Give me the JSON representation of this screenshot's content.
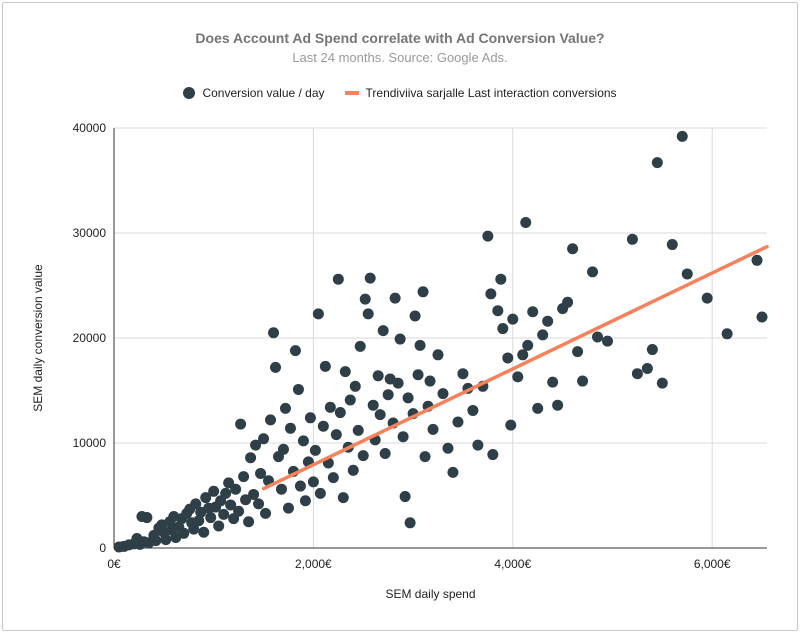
{
  "chart_data": {
    "type": "scatter",
    "title": "Does Account Ad Spend correlate with Ad Conversion Value?",
    "subtitle": "Last 24 months. Source: Google Ads.",
    "xlabel": "SEM daily spend",
    "ylabel": "SEM daily conversion value",
    "xlim": [
      0,
      6550
    ],
    "ylim": [
      0,
      40000
    ],
    "x_ticks": [
      {
        "value": 0,
        "label": "0€"
      },
      {
        "value": 2000,
        "label": "2,000€"
      },
      {
        "value": 4000,
        "label": "4,000€"
      },
      {
        "value": 6000,
        "label": "6,000€"
      }
    ],
    "y_ticks": [
      {
        "value": 0,
        "label": "0"
      },
      {
        "value": 10000,
        "label": "10000"
      },
      {
        "value": 20000,
        "label": "20000"
      },
      {
        "value": 30000,
        "label": "30000"
      },
      {
        "value": 40000,
        "label": "40000"
      }
    ],
    "grid": true,
    "legend_position": "top",
    "series": [
      {
        "name": "Conversion value / day",
        "type": "scatter",
        "color": "#2f3f47",
        "points": [
          [
            50,
            100
          ],
          [
            100,
            150
          ],
          [
            150,
            300
          ],
          [
            200,
            400
          ],
          [
            230,
            900
          ],
          [
            260,
            350
          ],
          [
            300,
            600
          ],
          [
            280,
            3000
          ],
          [
            330,
            2900
          ],
          [
            350,
            500
          ],
          [
            400,
            1200
          ],
          [
            420,
            700
          ],
          [
            450,
            1900
          ],
          [
            480,
            2200
          ],
          [
            500,
            1500
          ],
          [
            520,
            800
          ],
          [
            560,
            2500
          ],
          [
            580,
            1700
          ],
          [
            600,
            3000
          ],
          [
            620,
            1000
          ],
          [
            650,
            2000
          ],
          [
            680,
            2800
          ],
          [
            700,
            1400
          ],
          [
            730,
            3300
          ],
          [
            760,
            3700
          ],
          [
            780,
            2400
          ],
          [
            800,
            1800
          ],
          [
            820,
            4200
          ],
          [
            850,
            2600
          ],
          [
            870,
            3400
          ],
          [
            900,
            1500
          ],
          [
            920,
            4800
          ],
          [
            950,
            3800
          ],
          [
            970,
            2900
          ],
          [
            1000,
            5400
          ],
          [
            1020,
            3900
          ],
          [
            1050,
            2100
          ],
          [
            1070,
            4500
          ],
          [
            1100,
            3200
          ],
          [
            1120,
            5200
          ],
          [
            1150,
            6200
          ],
          [
            1170,
            4100
          ],
          [
            1200,
            2800
          ],
          [
            1220,
            5600
          ],
          [
            1250,
            3500
          ],
          [
            1270,
            11800
          ],
          [
            1300,
            6800
          ],
          [
            1320,
            4600
          ],
          [
            1350,
            2500
          ],
          [
            1370,
            8600
          ],
          [
            1400,
            5100
          ],
          [
            1420,
            9800
          ],
          [
            1450,
            4200
          ],
          [
            1470,
            7100
          ],
          [
            1500,
            10400
          ],
          [
            1520,
            3300
          ],
          [
            1550,
            6400
          ],
          [
            1570,
            12200
          ],
          [
            1600,
            20500
          ],
          [
            1620,
            17200
          ],
          [
            1650,
            8700
          ],
          [
            1680,
            5600
          ],
          [
            1700,
            9400
          ],
          [
            1720,
            13300
          ],
          [
            1750,
            3800
          ],
          [
            1770,
            11400
          ],
          [
            1800,
            7300
          ],
          [
            1820,
            18800
          ],
          [
            1850,
            15100
          ],
          [
            1870,
            5900
          ],
          [
            1900,
            10200
          ],
          [
            1920,
            4500
          ],
          [
            1950,
            8200
          ],
          [
            1970,
            12400
          ],
          [
            2000,
            6300
          ],
          [
            2020,
            9300
          ],
          [
            2050,
            22300
          ],
          [
            2070,
            5200
          ],
          [
            2100,
            11600
          ],
          [
            2120,
            17300
          ],
          [
            2150,
            8100
          ],
          [
            2170,
            13400
          ],
          [
            2200,
            6700
          ],
          [
            2230,
            10800
          ],
          [
            2250,
            25600
          ],
          [
            2270,
            12900
          ],
          [
            2300,
            4800
          ],
          [
            2320,
            16800
          ],
          [
            2350,
            9600
          ],
          [
            2370,
            14100
          ],
          [
            2400,
            7400
          ],
          [
            2420,
            15400
          ],
          [
            2450,
            11200
          ],
          [
            2470,
            19200
          ],
          [
            2500,
            8800
          ],
          [
            2520,
            23700
          ],
          [
            2550,
            22300
          ],
          [
            2570,
            25700
          ],
          [
            2600,
            13600
          ],
          [
            2620,
            10300
          ],
          [
            2650,
            16400
          ],
          [
            2670,
            12700
          ],
          [
            2700,
            20700
          ],
          [
            2720,
            9000
          ],
          [
            2750,
            14600
          ],
          [
            2770,
            16100
          ],
          [
            2800,
            11900
          ],
          [
            2820,
            23800
          ],
          [
            2850,
            15700
          ],
          [
            2870,
            19900
          ],
          [
            2900,
            10600
          ],
          [
            2920,
            4900
          ],
          [
            2950,
            14300
          ],
          [
            2970,
            2400
          ],
          [
            3000,
            12800
          ],
          [
            3020,
            22100
          ],
          [
            3050,
            16500
          ],
          [
            3070,
            19300
          ],
          [
            3100,
            24400
          ],
          [
            3120,
            8700
          ],
          [
            3150,
            13500
          ],
          [
            3170,
            15900
          ],
          [
            3200,
            11300
          ],
          [
            3250,
            18400
          ],
          [
            3300,
            14700
          ],
          [
            3350,
            9500
          ],
          [
            3400,
            7200
          ],
          [
            3450,
            12000
          ],
          [
            3500,
            16600
          ],
          [
            3550,
            15200
          ],
          [
            3600,
            13100
          ],
          [
            3650,
            9800
          ],
          [
            3700,
            15400
          ],
          [
            3750,
            29700
          ],
          [
            3780,
            24200
          ],
          [
            3800,
            8900
          ],
          [
            3850,
            22600
          ],
          [
            3880,
            25600
          ],
          [
            3900,
            20900
          ],
          [
            3950,
            18100
          ],
          [
            3980,
            11700
          ],
          [
            4000,
            21800
          ],
          [
            4050,
            16300
          ],
          [
            4100,
            18400
          ],
          [
            4130,
            31000
          ],
          [
            4150,
            19300
          ],
          [
            4200,
            22500
          ],
          [
            4250,
            13300
          ],
          [
            4300,
            20300
          ],
          [
            4350,
            21600
          ],
          [
            4400,
            15800
          ],
          [
            4450,
            13600
          ],
          [
            4500,
            22800
          ],
          [
            4550,
            23400
          ],
          [
            4600,
            28500
          ],
          [
            4650,
            18700
          ],
          [
            4700,
            15900
          ],
          [
            4800,
            26300
          ],
          [
            4850,
            20100
          ],
          [
            4950,
            19700
          ],
          [
            5200,
            29400
          ],
          [
            5250,
            16600
          ],
          [
            5350,
            17100
          ],
          [
            5400,
            18900
          ],
          [
            5450,
            36700
          ],
          [
            5500,
            15700
          ],
          [
            5600,
            28900
          ],
          [
            5700,
            39200
          ],
          [
            5750,
            26100
          ],
          [
            5950,
            23800
          ],
          [
            6150,
            20400
          ],
          [
            6450,
            27400
          ],
          [
            6500,
            22000
          ]
        ]
      },
      {
        "name": "Trendiviiva sarjalle Last interaction conversions",
        "type": "line",
        "color": "#f7815b",
        "x": [
          1500,
          6550
        ],
        "y": [
          5650,
          28700
        ]
      }
    ]
  }
}
